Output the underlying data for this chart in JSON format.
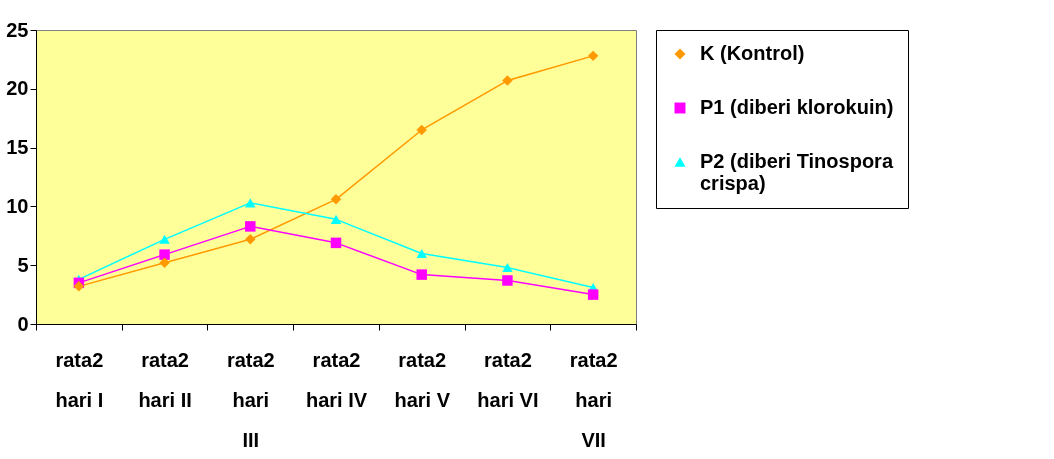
{
  "chart_data": {
    "type": "line",
    "categories": [
      "rata2 hari I",
      "rata2 hari II",
      "rata2 hari III",
      "rata2 hari IV",
      "rata2 hari V",
      "rata2 hari VI",
      "rata2 hari VII"
    ],
    "series": [
      {
        "name": "K (Kontrol)",
        "color": "#ff9900",
        "marker": "diamond",
        "values": [
          3.2,
          5.2,
          7.2,
          10.6,
          16.5,
          20.7,
          22.8
        ]
      },
      {
        "name": "P1 (diberi klorokuin)",
        "color": "#ff00ff",
        "marker": "square",
        "values": [
          3.5,
          5.9,
          8.3,
          6.9,
          4.2,
          3.7,
          2.5
        ]
      },
      {
        "name": "P2 (diberi Tinospora crispa)",
        "color": "#00ffff",
        "marker": "triangle",
        "values": [
          3.8,
          7.2,
          10.3,
          8.9,
          6.0,
          4.8,
          3.1
        ]
      }
    ],
    "ylim": [
      0,
      25
    ],
    "yticks": [
      0,
      5,
      10,
      15,
      20,
      25
    ],
    "grid": false,
    "legend": "right"
  }
}
